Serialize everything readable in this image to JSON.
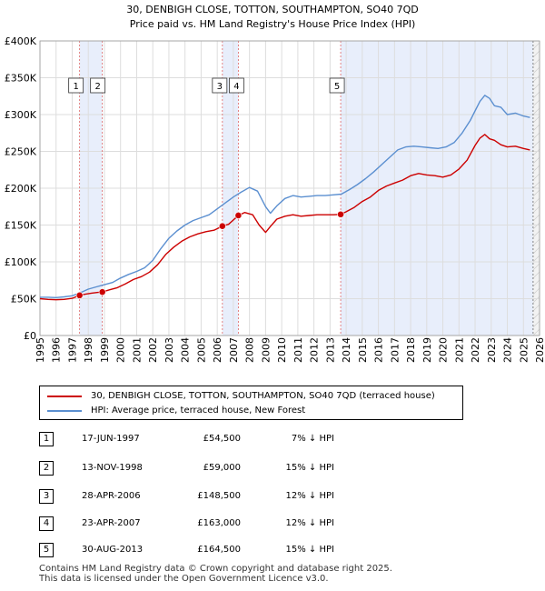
{
  "chart_data": {
    "type": "line",
    "title": "30, DENBIGH CLOSE, TOTTON, SOUTHAMPTON, SO40 7QD",
    "subtitle": "Price paid vs. HM Land Registry's House Price Index (HPI)",
    "xlim": [
      1995,
      2026
    ],
    "ylim": [
      0,
      400000
    ],
    "x_ticks": [
      "1995",
      "1996",
      "1997",
      "1998",
      "1999",
      "2000",
      "2001",
      "2002",
      "2003",
      "2004",
      "2005",
      "2006",
      "2007",
      "2008",
      "2009",
      "2010",
      "2011",
      "2012",
      "2013",
      "2014",
      "2015",
      "2016",
      "2017",
      "2018",
      "2019",
      "2020",
      "2021",
      "2022",
      "2023",
      "2024",
      "2025",
      "2026"
    ],
    "y_ticks": [
      {
        "value": 0,
        "label": "£0"
      },
      {
        "value": 50000,
        "label": "£50K"
      },
      {
        "value": 100000,
        "label": "£100K"
      },
      {
        "value": 150000,
        "label": "£150K"
      },
      {
        "value": 200000,
        "label": "£200K"
      },
      {
        "value": 250000,
        "label": "£250K"
      },
      {
        "value": 300000,
        "label": "£300K"
      },
      {
        "value": 350000,
        "label": "£350K"
      },
      {
        "value": 400000,
        "label": "£400K"
      }
    ],
    "series": [
      {
        "name": "30, DENBIGH CLOSE, TOTTON, SOUTHAMPTON, SO40 7QD (terraced house)",
        "color": "#cc0000",
        "x": [
          1995.0,
          1995.5,
          1996.0,
          1996.5,
          1997.0,
          1997.46,
          1997.8,
          1998.2,
          1998.6,
          1998.87,
          1999.3,
          1999.8,
          2000.3,
          2000.8,
          2001.3,
          2001.8,
          2002.3,
          2002.8,
          2003.3,
          2003.8,
          2004.3,
          2004.8,
          2005.3,
          2005.8,
          2006.32,
          2006.7,
          2007.31,
          2007.7,
          2008.2,
          2008.6,
          2009.0,
          2009.3,
          2009.7,
          2010.2,
          2010.7,
          2011.2,
          2011.7,
          2012.2,
          2012.7,
          2013.2,
          2013.66,
          2014.0,
          2014.5,
          2015.0,
          2015.5,
          2016.0,
          2016.5,
          2017.0,
          2017.5,
          2018.0,
          2018.5,
          2019.0,
          2019.5,
          2020.0,
          2020.5,
          2021.0,
          2021.5,
          2022.0,
          2022.3,
          2022.6,
          2022.9,
          2023.2,
          2023.6,
          2024.0,
          2024.5,
          2025.0,
          2025.4
        ],
        "values": [
          50000,
          49000,
          48500,
          49000,
          50500,
          54500,
          56000,
          57500,
          58500,
          59000,
          62000,
          65000,
          70000,
          76000,
          80000,
          86000,
          96000,
          110000,
          120000,
          128000,
          134000,
          138000,
          141000,
          143000,
          148500,
          151000,
          163000,
          167000,
          164000,
          150000,
          140000,
          148000,
          158000,
          162000,
          164000,
          162000,
          163000,
          164000,
          164000,
          164000,
          164500,
          168000,
          174000,
          182000,
          188000,
          197000,
          203000,
          207000,
          211000,
          217000,
          220000,
          218000,
          217000,
          215000,
          218000,
          226000,
          238000,
          258000,
          268000,
          273000,
          267000,
          265000,
          259000,
          256000,
          257000,
          254000,
          252000
        ]
      },
      {
        "name": "HPI: Average price, terraced house, New Forest",
        "color": "#5b8fd0",
        "x": [
          1995.0,
          1995.5,
          1996.0,
          1996.5,
          1997.0,
          1997.5,
          1998.0,
          1998.5,
          1999.0,
          1999.5,
          2000.0,
          2000.5,
          2001.0,
          2001.5,
          2002.0,
          2002.5,
          2003.0,
          2003.5,
          2004.0,
          2004.5,
          2005.0,
          2005.5,
          2006.0,
          2006.5,
          2007.0,
          2007.5,
          2008.0,
          2008.5,
          2009.0,
          2009.3,
          2009.7,
          2010.2,
          2010.7,
          2011.2,
          2011.7,
          2012.2,
          2012.7,
          2013.2,
          2013.7,
          2014.2,
          2014.7,
          2015.2,
          2015.7,
          2016.2,
          2016.7,
          2017.2,
          2017.7,
          2018.2,
          2018.7,
          2019.2,
          2019.7,
          2020.2,
          2020.7,
          2021.2,
          2021.7,
          2022.0,
          2022.3,
          2022.6,
          2022.9,
          2023.2,
          2023.6,
          2024.0,
          2024.5,
          2025.0,
          2025.4
        ],
        "values": [
          52000,
          52000,
          51500,
          52500,
          54000,
          58000,
          63000,
          66000,
          69000,
          72000,
          78000,
          83000,
          87000,
          92000,
          102000,
          118000,
          132000,
          142000,
          150000,
          156000,
          160000,
          164000,
          172000,
          180000,
          188000,
          195000,
          201000,
          196000,
          175000,
          166000,
          176000,
          186000,
          190000,
          188000,
          189000,
          190000,
          190000,
          191000,
          192000,
          198000,
          205000,
          213000,
          222000,
          232000,
          242000,
          252000,
          256000,
          257000,
          256000,
          255000,
          254000,
          256000,
          262000,
          275000,
          292000,
          305000,
          318000,
          326000,
          322000,
          312000,
          310000,
          300000,
          302000,
          298000,
          296000
        ]
      }
    ],
    "sales": [
      {
        "id": "1",
        "x": 1997.46,
        "value": 54500
      },
      {
        "id": "2",
        "x": 1998.87,
        "value": 59000
      },
      {
        "id": "3",
        "x": 2006.32,
        "value": 148500
      },
      {
        "id": "4",
        "x": 2007.31,
        "value": 163000
      },
      {
        "id": "5",
        "x": 2013.66,
        "value": 164500
      }
    ],
    "shaded_spans": [
      [
        1997.46,
        1998.87
      ],
      [
        2006.32,
        2007.31
      ],
      [
        2013.66,
        2025.6
      ]
    ],
    "future_start": 2025.6,
    "legend_position": "below"
  },
  "legend": {
    "property_label": "30, DENBIGH CLOSE, TOTTON, SOUTHAMPTON, SO40 7QD (terraced house)",
    "hpi_label": "HPI: Average price, terraced house, New Forest",
    "property_color": "#cc0000",
    "hpi_color": "#5b8fd0"
  },
  "transactions": [
    {
      "num": "1",
      "date": "17-JUN-1997",
      "price": "£54,500",
      "hpi": "7% ↓ HPI"
    },
    {
      "num": "2",
      "date": "13-NOV-1998",
      "price": "£59,000",
      "hpi": "15% ↓ HPI"
    },
    {
      "num": "3",
      "date": "28-APR-2006",
      "price": "£148,500",
      "hpi": "12% ↓ HPI"
    },
    {
      "num": "4",
      "date": "23-APR-2007",
      "price": "£163,000",
      "hpi": "12% ↓ HPI"
    },
    {
      "num": "5",
      "date": "30-AUG-2013",
      "price": "£164,500",
      "hpi": "15% ↓ HPI"
    }
  ],
  "footer": {
    "line1": "Contains HM Land Registry data © Crown copyright and database right 2025.",
    "line2": "This data is licensed under the Open Government Licence v3.0."
  }
}
